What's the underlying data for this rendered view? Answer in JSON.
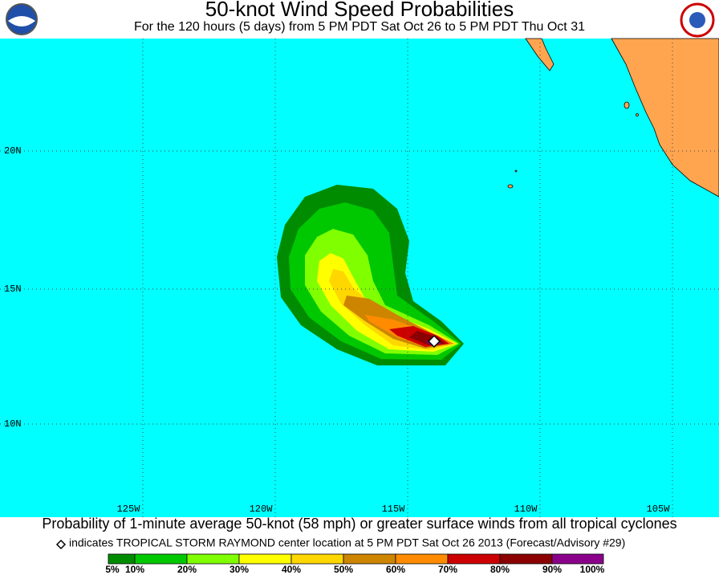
{
  "header": {
    "title": "50-knot Wind Speed Probabilities",
    "subtitle": "For the 120 hours (5 days) from 5 PM PDT Sat Oct 26 to 5 PM PDT Thu Oct 31"
  },
  "map": {
    "lon_labels": [
      "125W",
      "120W",
      "115W",
      "110W",
      "105W"
    ],
    "lat_labels": [
      "20N",
      "15N",
      "10N"
    ]
  },
  "caption": {
    "line1": "Probability of 1-minute average 50-knot (58 mph) or greater surface winds from all tropical cyclones",
    "line2": "indicates TROPICAL STORM RAYMOND center location at 5 PM PDT Sat Oct 26 2013 (Forecast/Advisory #29)"
  },
  "legend": {
    "labels": [
      "5%",
      "10%",
      "20%",
      "30%",
      "40%",
      "50%",
      "60%",
      "70%",
      "80%",
      "90%",
      "100%"
    ],
    "colors": [
      "#008c00",
      "#00c800",
      "#80ff00",
      "#ffff00",
      "#ffd700",
      "#cd8500",
      "#ff8c00",
      "#cd0000",
      "#8b0000",
      "#8b008b"
    ]
  }
}
